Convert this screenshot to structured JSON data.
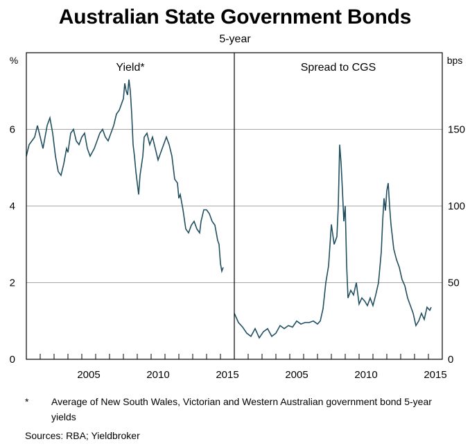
{
  "title": "Australian State Government Bonds",
  "subtitle": "5-year",
  "footnote_mark": "*",
  "footnote_text": "Average of New South Wales, Victorian and Western Australian government bond 5-year yields",
  "sources": "Sources: RBA; Yieldbroker",
  "colors": {
    "line": "#1f4e5f",
    "grid": "#a6a6a6",
    "axis": "#000000"
  },
  "chart_data": [
    {
      "type": "line",
      "panel_label": "Yield*",
      "ylabel": "%",
      "ylim": [
        0,
        8
      ],
      "yticks": [
        0,
        2,
        4,
        6
      ],
      "xlim": [
        2001.0,
        2016.0
      ],
      "xticks": [
        2005,
        2010,
        2015
      ],
      "grid": true,
      "series": [
        {
          "values": [
            [
              2001.0,
              5.3
            ],
            [
              2001.2,
              5.6
            ],
            [
              2001.4,
              5.7
            ],
            [
              2001.6,
              5.8
            ],
            [
              2001.8,
              6.1
            ],
            [
              2002.0,
              5.8
            ],
            [
              2002.2,
              5.5
            ],
            [
              2002.5,
              6.1
            ],
            [
              2002.7,
              6.3
            ],
            [
              2002.9,
              5.9
            ],
            [
              2003.1,
              5.3
            ],
            [
              2003.3,
              4.9
            ],
            [
              2003.5,
              4.8
            ],
            [
              2003.7,
              5.1
            ],
            [
              2003.9,
              5.5
            ],
            [
              2004.0,
              5.4
            ],
            [
              2004.2,
              5.9
            ],
            [
              2004.4,
              6.0
            ],
            [
              2004.6,
              5.7
            ],
            [
              2004.8,
              5.6
            ],
            [
              2005.0,
              5.8
            ],
            [
              2005.2,
              5.9
            ],
            [
              2005.4,
              5.5
            ],
            [
              2005.6,
              5.3
            ],
            [
              2005.9,
              5.5
            ],
            [
              2006.1,
              5.7
            ],
            [
              2006.3,
              5.9
            ],
            [
              2006.5,
              6.0
            ],
            [
              2006.7,
              5.8
            ],
            [
              2006.9,
              5.7
            ],
            [
              2007.1,
              5.9
            ],
            [
              2007.3,
              6.1
            ],
            [
              2007.5,
              6.4
            ],
            [
              2007.7,
              6.5
            ],
            [
              2007.9,
              6.7
            ],
            [
              2008.0,
              6.8
            ],
            [
              2008.1,
              7.2
            ],
            [
              2008.2,
              7.0
            ],
            [
              2008.3,
              6.9
            ],
            [
              2008.4,
              7.3
            ],
            [
              2008.5,
              7.0
            ],
            [
              2008.6,
              6.4
            ],
            [
              2008.7,
              5.6
            ],
            [
              2008.8,
              5.3
            ],
            [
              2008.9,
              4.9
            ],
            [
              2009.0,
              4.6
            ],
            [
              2009.1,
              4.3
            ],
            [
              2009.2,
              4.8
            ],
            [
              2009.4,
              5.3
            ],
            [
              2009.5,
              5.8
            ],
            [
              2009.7,
              5.9
            ],
            [
              2009.9,
              5.6
            ],
            [
              2010.1,
              5.8
            ],
            [
              2010.3,
              5.5
            ],
            [
              2010.5,
              5.2
            ],
            [
              2010.7,
              5.4
            ],
            [
              2010.9,
              5.6
            ],
            [
              2011.1,
              5.8
            ],
            [
              2011.3,
              5.6
            ],
            [
              2011.5,
              5.3
            ],
            [
              2011.7,
              4.7
            ],
            [
              2011.9,
              4.6
            ],
            [
              2012.0,
              4.2
            ],
            [
              2012.1,
              4.3
            ],
            [
              2012.3,
              3.9
            ],
            [
              2012.5,
              3.4
            ],
            [
              2012.7,
              3.3
            ],
            [
              2012.9,
              3.5
            ],
            [
              2013.1,
              3.6
            ],
            [
              2013.3,
              3.4
            ],
            [
              2013.5,
              3.3
            ],
            [
              2013.6,
              3.6
            ],
            [
              2013.8,
              3.9
            ],
            [
              2014.0,
              3.9
            ],
            [
              2014.2,
              3.8
            ],
            [
              2014.4,
              3.6
            ],
            [
              2014.6,
              3.5
            ],
            [
              2014.8,
              3.1
            ],
            [
              2014.9,
              3.0
            ],
            [
              2015.0,
              2.5
            ],
            [
              2015.1,
              2.3
            ],
            [
              2015.2,
              2.4
            ]
          ]
        }
      ]
    },
    {
      "type": "line",
      "panel_label": "Spread to CGS",
      "ylabel": "bps",
      "ylim": [
        0,
        200
      ],
      "yticks": [
        0,
        50,
        100,
        150
      ],
      "xlim": [
        2001.0,
        2016.0
      ],
      "xticks": [
        2005,
        2010,
        2015
      ],
      "grid": true,
      "series": [
        {
          "values": [
            [
              2001.0,
              30
            ],
            [
              2001.3,
              24
            ],
            [
              2001.6,
              21
            ],
            [
              2001.9,
              17
            ],
            [
              2002.2,
              15
            ],
            [
              2002.5,
              20
            ],
            [
              2002.8,
              14
            ],
            [
              2003.1,
              18
            ],
            [
              2003.4,
              20
            ],
            [
              2003.7,
              15
            ],
            [
              2004.0,
              17
            ],
            [
              2004.3,
              22
            ],
            [
              2004.6,
              20
            ],
            [
              2004.9,
              22
            ],
            [
              2005.2,
              21
            ],
            [
              2005.5,
              25
            ],
            [
              2005.8,
              23
            ],
            [
              2006.1,
              24
            ],
            [
              2006.4,
              24
            ],
            [
              2006.7,
              25
            ],
            [
              2007.0,
              23
            ],
            [
              2007.2,
              25
            ],
            [
              2007.4,
              33
            ],
            [
              2007.6,
              50
            ],
            [
              2007.8,
              61
            ],
            [
              2008.0,
              88
            ],
            [
              2008.2,
              75
            ],
            [
              2008.4,
              80
            ],
            [
              2008.5,
              100
            ],
            [
              2008.6,
              140
            ],
            [
              2008.7,
              128
            ],
            [
              2008.8,
              110
            ],
            [
              2008.9,
              90
            ],
            [
              2009.0,
              100
            ],
            [
              2009.1,
              62
            ],
            [
              2009.2,
              40
            ],
            [
              2009.4,
              45
            ],
            [
              2009.6,
              42
            ],
            [
              2009.8,
              50
            ],
            [
              2010.0,
              36
            ],
            [
              2010.2,
              40
            ],
            [
              2010.4,
              38
            ],
            [
              2010.6,
              35
            ],
            [
              2010.8,
              40
            ],
            [
              2011.0,
              35
            ],
            [
              2011.2,
              42
            ],
            [
              2011.4,
              50
            ],
            [
              2011.6,
              70
            ],
            [
              2011.7,
              90
            ],
            [
              2011.8,
              105
            ],
            [
              2011.9,
              97
            ],
            [
              2012.0,
              110
            ],
            [
              2012.1,
              115
            ],
            [
              2012.2,
              100
            ],
            [
              2012.3,
              88
            ],
            [
              2012.5,
              72
            ],
            [
              2012.7,
              65
            ],
            [
              2012.9,
              60
            ],
            [
              2013.1,
              52
            ],
            [
              2013.3,
              48
            ],
            [
              2013.5,
              40
            ],
            [
              2013.7,
              35
            ],
            [
              2013.9,
              30
            ],
            [
              2014.1,
              22
            ],
            [
              2014.3,
              25
            ],
            [
              2014.5,
              30
            ],
            [
              2014.7,
              26
            ],
            [
              2014.9,
              34
            ],
            [
              2015.1,
              32
            ],
            [
              2015.2,
              34
            ]
          ]
        }
      ]
    }
  ]
}
